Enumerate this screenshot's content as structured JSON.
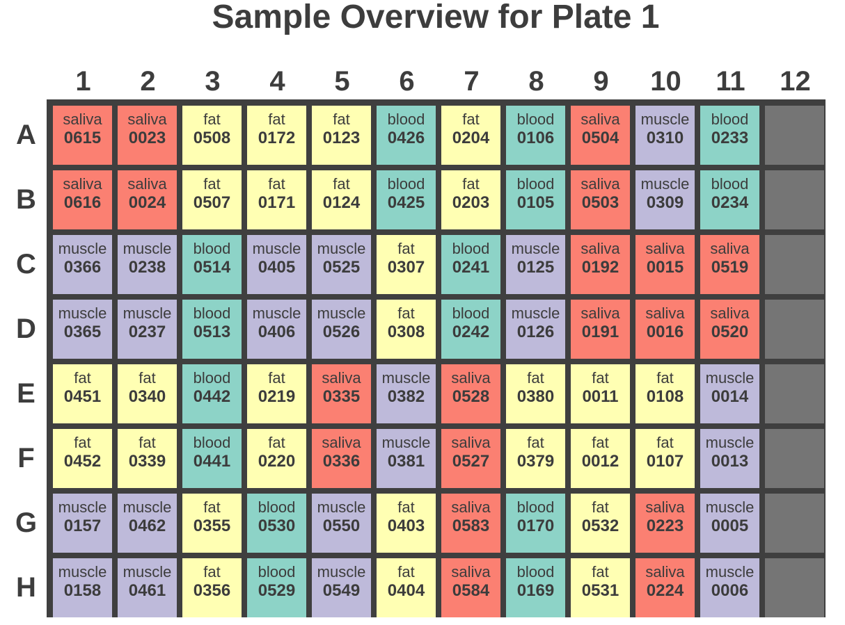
{
  "title": "Sample Overview for Plate 1",
  "colors": {
    "saliva": "#fb8072",
    "fat": "#ffffb3",
    "blood": "#8dd3c7",
    "muscle": "#bebada",
    "empty": "#757575",
    "plate_border": "#3f3f3f"
  },
  "chart_data": {
    "type": "heatmap",
    "title": "Sample Overview for Plate 1",
    "columns": [
      "1",
      "2",
      "3",
      "4",
      "5",
      "6",
      "7",
      "8",
      "9",
      "10",
      "11",
      "12"
    ],
    "rows": [
      "A",
      "B",
      "C",
      "D",
      "E",
      "F",
      "G",
      "H"
    ],
    "wells": [
      [
        {
          "tissue": "saliva",
          "id": "0615"
        },
        {
          "tissue": "saliva",
          "id": "0023"
        },
        {
          "tissue": "fat",
          "id": "0508"
        },
        {
          "tissue": "fat",
          "id": "0172"
        },
        {
          "tissue": "fat",
          "id": "0123"
        },
        {
          "tissue": "blood",
          "id": "0426"
        },
        {
          "tissue": "fat",
          "id": "0204"
        },
        {
          "tissue": "blood",
          "id": "0106"
        },
        {
          "tissue": "saliva",
          "id": "0504"
        },
        {
          "tissue": "muscle",
          "id": "0310"
        },
        {
          "tissue": "blood",
          "id": "0233"
        },
        null
      ],
      [
        {
          "tissue": "saliva",
          "id": "0616"
        },
        {
          "tissue": "saliva",
          "id": "0024"
        },
        {
          "tissue": "fat",
          "id": "0507"
        },
        {
          "tissue": "fat",
          "id": "0171"
        },
        {
          "tissue": "fat",
          "id": "0124"
        },
        {
          "tissue": "blood",
          "id": "0425"
        },
        {
          "tissue": "fat",
          "id": "0203"
        },
        {
          "tissue": "blood",
          "id": "0105"
        },
        {
          "tissue": "saliva",
          "id": "0503"
        },
        {
          "tissue": "muscle",
          "id": "0309"
        },
        {
          "tissue": "blood",
          "id": "0234"
        },
        null
      ],
      [
        {
          "tissue": "muscle",
          "id": "0366"
        },
        {
          "tissue": "muscle",
          "id": "0238"
        },
        {
          "tissue": "blood",
          "id": "0514"
        },
        {
          "tissue": "muscle",
          "id": "0405"
        },
        {
          "tissue": "muscle",
          "id": "0525"
        },
        {
          "tissue": "fat",
          "id": "0307"
        },
        {
          "tissue": "blood",
          "id": "0241"
        },
        {
          "tissue": "muscle",
          "id": "0125"
        },
        {
          "tissue": "saliva",
          "id": "0192"
        },
        {
          "tissue": "saliva",
          "id": "0015"
        },
        {
          "tissue": "saliva",
          "id": "0519"
        },
        null
      ],
      [
        {
          "tissue": "muscle",
          "id": "0365"
        },
        {
          "tissue": "muscle",
          "id": "0237"
        },
        {
          "tissue": "blood",
          "id": "0513"
        },
        {
          "tissue": "muscle",
          "id": "0406"
        },
        {
          "tissue": "muscle",
          "id": "0526"
        },
        {
          "tissue": "fat",
          "id": "0308"
        },
        {
          "tissue": "blood",
          "id": "0242"
        },
        {
          "tissue": "muscle",
          "id": "0126"
        },
        {
          "tissue": "saliva",
          "id": "0191"
        },
        {
          "tissue": "saliva",
          "id": "0016"
        },
        {
          "tissue": "saliva",
          "id": "0520"
        },
        null
      ],
      [
        {
          "tissue": "fat",
          "id": "0451"
        },
        {
          "tissue": "fat",
          "id": "0340"
        },
        {
          "tissue": "blood",
          "id": "0442"
        },
        {
          "tissue": "fat",
          "id": "0219"
        },
        {
          "tissue": "saliva",
          "id": "0335"
        },
        {
          "tissue": "muscle",
          "id": "0382"
        },
        {
          "tissue": "saliva",
          "id": "0528"
        },
        {
          "tissue": "fat",
          "id": "0380"
        },
        {
          "tissue": "fat",
          "id": "0011"
        },
        {
          "tissue": "fat",
          "id": "0108"
        },
        {
          "tissue": "muscle",
          "id": "0014"
        },
        null
      ],
      [
        {
          "tissue": "fat",
          "id": "0452"
        },
        {
          "tissue": "fat",
          "id": "0339"
        },
        {
          "tissue": "blood",
          "id": "0441"
        },
        {
          "tissue": "fat",
          "id": "0220"
        },
        {
          "tissue": "saliva",
          "id": "0336"
        },
        {
          "tissue": "muscle",
          "id": "0381"
        },
        {
          "tissue": "saliva",
          "id": "0527"
        },
        {
          "tissue": "fat",
          "id": "0379"
        },
        {
          "tissue": "fat",
          "id": "0012"
        },
        {
          "tissue": "fat",
          "id": "0107"
        },
        {
          "tissue": "muscle",
          "id": "0013"
        },
        null
      ],
      [
        {
          "tissue": "muscle",
          "id": "0157"
        },
        {
          "tissue": "muscle",
          "id": "0462"
        },
        {
          "tissue": "fat",
          "id": "0355"
        },
        {
          "tissue": "blood",
          "id": "0530"
        },
        {
          "tissue": "muscle",
          "id": "0550"
        },
        {
          "tissue": "fat",
          "id": "0403"
        },
        {
          "tissue": "saliva",
          "id": "0583"
        },
        {
          "tissue": "blood",
          "id": "0170"
        },
        {
          "tissue": "fat",
          "id": "0532"
        },
        {
          "tissue": "saliva",
          "id": "0223"
        },
        {
          "tissue": "muscle",
          "id": "0005"
        },
        null
      ],
      [
        {
          "tissue": "muscle",
          "id": "0158"
        },
        {
          "tissue": "muscle",
          "id": "0461"
        },
        {
          "tissue": "fat",
          "id": "0356"
        },
        {
          "tissue": "blood",
          "id": "0529"
        },
        {
          "tissue": "muscle",
          "id": "0549"
        },
        {
          "tissue": "fat",
          "id": "0404"
        },
        {
          "tissue": "saliva",
          "id": "0584"
        },
        {
          "tissue": "blood",
          "id": "0169"
        },
        {
          "tissue": "fat",
          "id": "0531"
        },
        {
          "tissue": "saliva",
          "id": "0224"
        },
        {
          "tissue": "muscle",
          "id": "0006"
        },
        null
      ]
    ]
  }
}
